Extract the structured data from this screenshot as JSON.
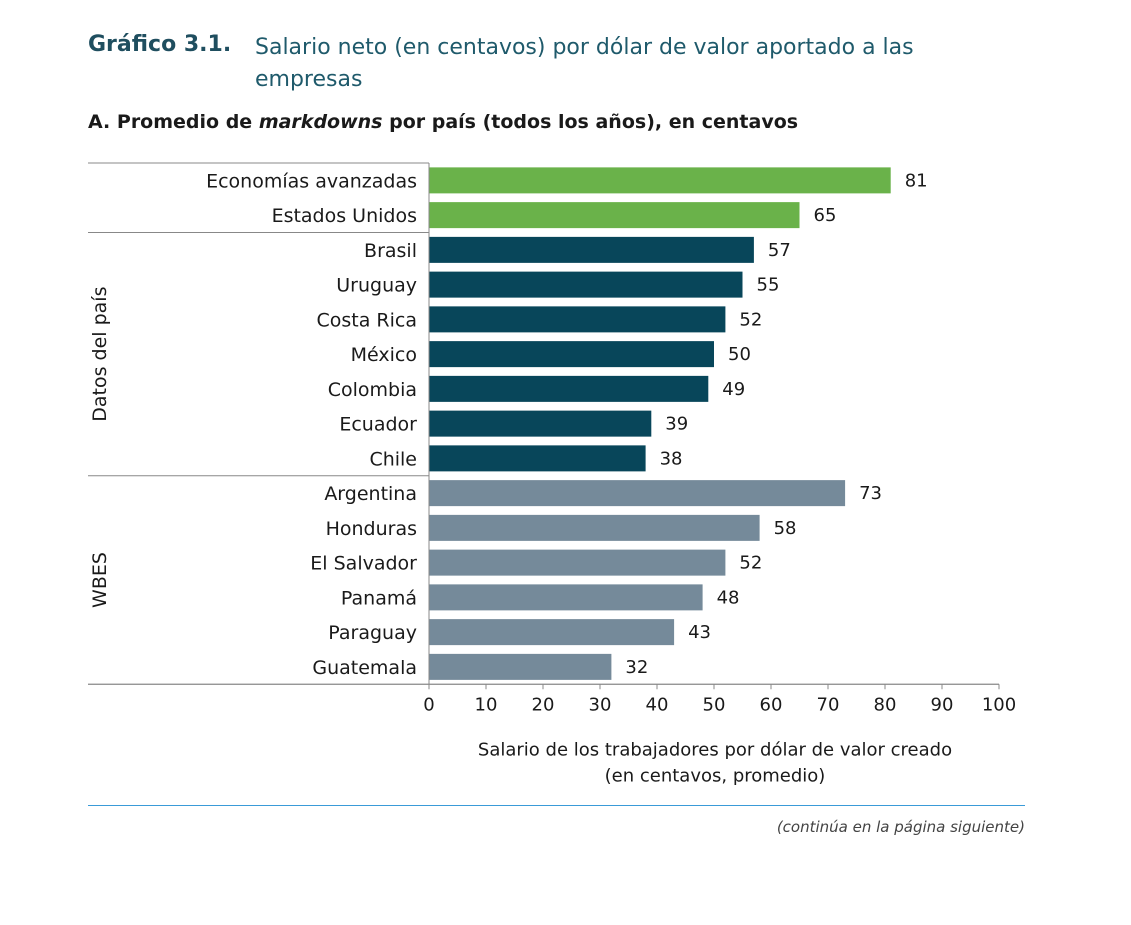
{
  "header": {
    "label": "Gráfico 3.1.",
    "title": "Salario neto (en centavos) por dólar de valor aportado a las empresas"
  },
  "subtitle": {
    "prefix": "A. Promedio de ",
    "italic": "markdowns",
    "suffix": " por país (todos los años), en centavos"
  },
  "footer": {
    "note": "(continúa en la página siguiente)"
  },
  "chart_data": {
    "type": "bar",
    "orientation": "horizontal",
    "title": "A. Promedio de markdowns por país (todos los años), en centavos",
    "xlabel": "Salario de los trabajadores por dólar de valor creado (en centavos, promedio)",
    "xlabel_lines": [
      "Salario de los trabajadores por dólar de valor creado",
      "(en centavos, promedio)"
    ],
    "xlim": [
      0,
      100
    ],
    "xticks": [
      0,
      10,
      20,
      30,
      40,
      50,
      60,
      70,
      80,
      90,
      100
    ],
    "groups": [
      {
        "name": "",
        "color": "#6ab24a",
        "categories": [
          "Economías avanzadas",
          "Estados Unidos"
        ],
        "values": [
          81,
          65
        ]
      },
      {
        "name": "Datos del país",
        "color": "#08465a",
        "categories": [
          "Brasil",
          "Uruguay",
          "Costa Rica",
          "México",
          "Colombia",
          "Ecuador",
          "Chile"
        ],
        "values": [
          57,
          55,
          52,
          50,
          49,
          39,
          38
        ]
      },
      {
        "name": "WBES",
        "color": "#758a9a",
        "categories": [
          "Argentina",
          "Honduras",
          "El Salvador",
          "Panamá",
          "Paraguay",
          "Guatemala"
        ],
        "values": [
          73,
          58,
          52,
          48,
          43,
          32
        ]
      }
    ]
  }
}
